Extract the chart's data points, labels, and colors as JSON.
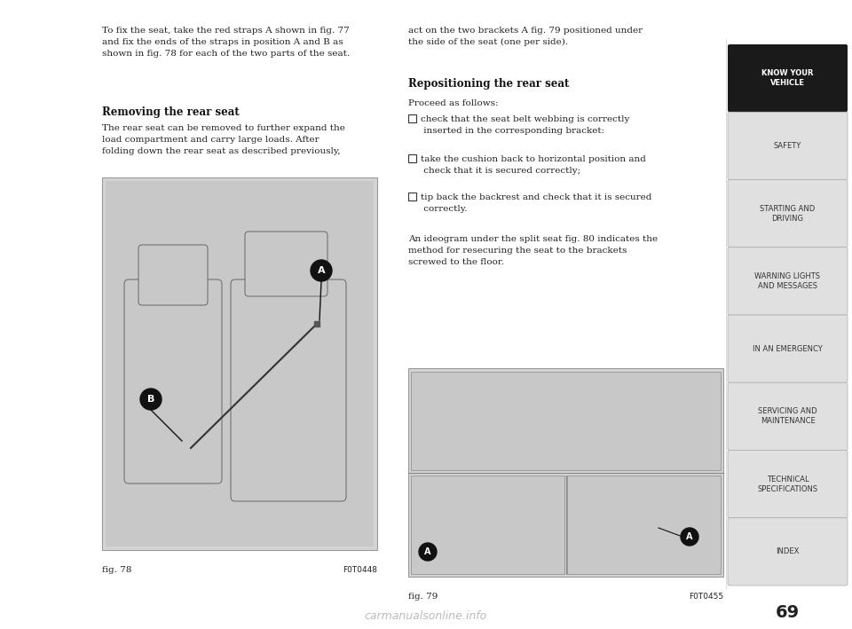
{
  "page_bg": "#ffffff",
  "sidebar_bg": "#e0e0e0",
  "sidebar_active_bg": "#1a1a1a",
  "sidebar_active_text": "#ffffff",
  "sidebar_inactive_text": "#333333",
  "sidebar_items": [
    {
      "label": "KNOW YOUR\nVEHICLE",
      "active": true
    },
    {
      "label": "SAFETY",
      "active": false
    },
    {
      "label": "STARTING AND\nDRIVING",
      "active": false
    },
    {
      "label": "WARNING LIGHTS\nAND MESSAGES",
      "active": false
    },
    {
      "label": "IN AN EMERGENCY",
      "active": false
    },
    {
      "label": "SERVICING AND\nMAINTENANCE",
      "active": false
    },
    {
      "label": "TECHNICAL\nSPECIFICATIONS",
      "active": false
    },
    {
      "label": "INDEX",
      "active": false
    }
  ],
  "page_number": "69",
  "top_text_left": "To fix the seat, take the red straps A shown in fig. 77\nand fix the ends of the straps in position A and B as\nshown in fig. 78 for each of the two parts of the seat.",
  "section_heading_left": "Removing the rear seat",
  "body_text_left": "The rear seat can be removed to further expand the\nload compartment and carry large loads. After\nfolding down the rear seat as described previously,",
  "fig78_label": "fig. 78",
  "fig78_code": "F0T0448",
  "top_text_right": "act on the two brackets A fig. 79 positioned under\nthe side of the seat (one per side).",
  "section_heading_right": "Repositioning the rear seat",
  "body_text_right_1": "Proceed as follows:",
  "body_text_right_bullets": [
    "check that the seat belt webbing is correctly\n inserted in the corresponding bracket:",
    "take the cushion back to horizontal position and\n check that it is secured correctly;",
    "tip back the backrest and check that it is secured\n correctly."
  ],
  "body_text_right_2": "An ideogram under the split seat fig. 80 indicates the\nmethod for resecuring the seat to the brackets\nscrewed to the floor.",
  "fig79_label": "fig. 79",
  "fig79_code": "F0T0455",
  "watermark": "carmanualsonline.info",
  "text_color": "#222222",
  "heading_color": "#111111",
  "fig_border_color": "#999999",
  "fig_bg_color": "#d4d4d4",
  "fig_inner_color": "#c8c8c8"
}
